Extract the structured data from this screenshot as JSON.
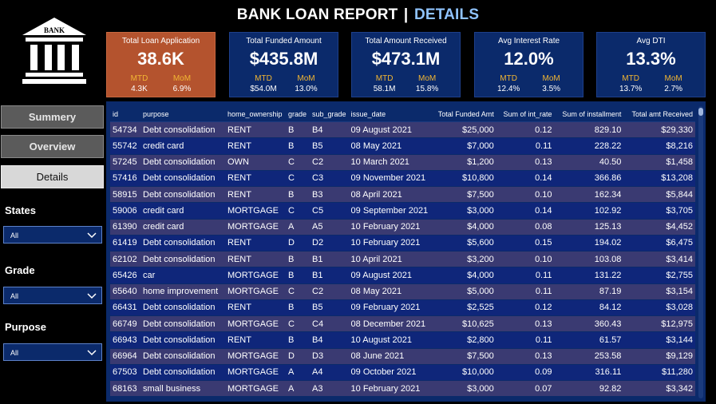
{
  "header": {
    "title_main": "BANK LOAN REPORT",
    "title_sep": "|",
    "title_accent": "DETAILS"
  },
  "logo": {
    "text": "BANK"
  },
  "kpis": [
    {
      "label": "Total Loan Application",
      "value": "38.6K",
      "mtd_label": "MTD",
      "mtd": "4.3K",
      "mom_label": "MoM",
      "mom": "6.9%"
    },
    {
      "label": "Total Funded Amount",
      "value": "$435.8M",
      "mtd_label": "MTD",
      "mtd": "$54.0M",
      "mom_label": "MoM",
      "mom": "13.0%"
    },
    {
      "label": "Total  Amount Received",
      "value": "$473.1M",
      "mtd_label": "MTD",
      "mtd": "58.1M",
      "mom_label": "MoM",
      "mom": "15.8%"
    },
    {
      "label": "Avg Interest Rate",
      "value": "12.0%",
      "mtd_label": "MTD",
      "mtd": "12.4%",
      "mom_label": "MoM",
      "mom": "3.5%"
    },
    {
      "label": "Avg DTI",
      "value": "13.3%",
      "mtd_label": "MTD",
      "mtd": "13.7%",
      "mom_label": "MoM",
      "mom": "2.7%"
    }
  ],
  "nav": {
    "summary": "Summery",
    "overview": "Overview",
    "details": "Details"
  },
  "filters": {
    "states": {
      "label": "States",
      "value": "All"
    },
    "grade": {
      "label": "Grade",
      "value": "All"
    },
    "purpose": {
      "label": "Purpose",
      "value": "All"
    }
  },
  "table": {
    "headers": [
      "id",
      "purpose",
      "home_ownership",
      "grade",
      "sub_grade",
      "issue_date",
      "Total Funded Amt",
      "Sum of int_rate",
      "Sum of installment",
      "Total amt Received"
    ],
    "rows": [
      [
        "54734",
        "Debt consolidation",
        "RENT",
        "B",
        "B4",
        "09 August 2021",
        "$25,000",
        "0.12",
        "829.10",
        "$29,330"
      ],
      [
        "55742",
        "credit card",
        "RENT",
        "B",
        "B5",
        "08 May 2021",
        "$7,000",
        "0.11",
        "228.22",
        "$8,216"
      ],
      [
        "57245",
        "Debt consolidation",
        "OWN",
        "C",
        "C2",
        "10 March 2021",
        "$1,200",
        "0.13",
        "40.50",
        "$1,458"
      ],
      [
        "57416",
        "Debt consolidation",
        "RENT",
        "C",
        "C3",
        "09 November 2021",
        "$10,800",
        "0.14",
        "366.86",
        "$13,208"
      ],
      [
        "58915",
        "Debt consolidation",
        "RENT",
        "B",
        "B3",
        "08 April 2021",
        "$7,500",
        "0.10",
        "162.34",
        "$5,844"
      ],
      [
        "59006",
        "credit card",
        "MORTGAGE",
        "C",
        "C5",
        "09 September 2021",
        "$3,000",
        "0.14",
        "102.92",
        "$3,705"
      ],
      [
        "61390",
        "credit card",
        "MORTGAGE",
        "A",
        "A5",
        "10 February 2021",
        "$4,000",
        "0.08",
        "125.13",
        "$4,452"
      ],
      [
        "61419",
        "Debt consolidation",
        "RENT",
        "D",
        "D2",
        "10 February 2021",
        "$5,600",
        "0.15",
        "194.02",
        "$6,475"
      ],
      [
        "62102",
        "Debt consolidation",
        "RENT",
        "B",
        "B1",
        "10 April 2021",
        "$3,200",
        "0.10",
        "103.08",
        "$3,414"
      ],
      [
        "65426",
        "car",
        "MORTGAGE",
        "B",
        "B1",
        "09 August 2021",
        "$4,000",
        "0.11",
        "131.22",
        "$2,755"
      ],
      [
        "65640",
        "home improvement",
        "MORTGAGE",
        "C",
        "C2",
        "08 May 2021",
        "$5,000",
        "0.11",
        "87.19",
        "$3,154"
      ],
      [
        "66431",
        "Debt consolidation",
        "RENT",
        "B",
        "B5",
        "09 February 2021",
        "$2,525",
        "0.12",
        "84.12",
        "$3,028"
      ],
      [
        "66749",
        "Debt consolidation",
        "MORTGAGE",
        "C",
        "C4",
        "08 December 2021",
        "$10,625",
        "0.13",
        "360.43",
        "$12,975"
      ],
      [
        "66943",
        "Debt consolidation",
        "RENT",
        "B",
        "B4",
        "10 August 2021",
        "$2,800",
        "0.11",
        "61.57",
        "$3,144"
      ],
      [
        "66964",
        "Debt consolidation",
        "MORTGAGE",
        "D",
        "D3",
        "08 June 2021",
        "$7,500",
        "0.13",
        "253.58",
        "$9,129"
      ],
      [
        "67503",
        "Debt consolidation",
        "MORTGAGE",
        "A",
        "A4",
        "09 October 2021",
        "$10,000",
        "0.09",
        "316.11",
        "$11,280"
      ],
      [
        "68163",
        "small business",
        "MORTGAGE",
        "A",
        "A3",
        "10 February 2021",
        "$3,000",
        "0.07",
        "92.82",
        "$3,342"
      ]
    ]
  }
}
